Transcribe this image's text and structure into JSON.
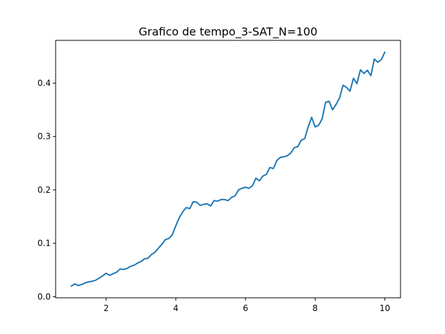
{
  "chart_data": {
    "type": "line",
    "title": "Grafico de tempo_3-SAT_N=100",
    "xlabel": "",
    "ylabel": "",
    "xlim": [
      0.55,
      10.45
    ],
    "ylim": [
      -0.002,
      0.48
    ],
    "xticks": [
      2,
      4,
      6,
      8,
      10
    ],
    "yticks": [
      0.0,
      0.1,
      0.2,
      0.3,
      0.4
    ],
    "xtick_labels": [
      "2",
      "4",
      "6",
      "8",
      "10"
    ],
    "ytick_labels": [
      "0.0",
      "0.1",
      "0.2",
      "0.3",
      "0.4"
    ],
    "grid": false,
    "series": [
      {
        "color": "#1f77b4",
        "x": [
          1.0,
          1.1,
          1.2,
          1.3,
          1.4,
          1.5,
          1.6,
          1.7,
          1.8,
          1.9,
          2.0,
          2.1,
          2.2,
          2.3,
          2.4,
          2.5,
          2.6,
          2.7,
          2.8,
          2.9,
          3.0,
          3.1,
          3.2,
          3.3,
          3.4,
          3.5,
          3.6,
          3.7,
          3.8,
          3.9,
          4.0,
          4.1,
          4.2,
          4.3,
          4.4,
          4.5,
          4.6,
          4.7,
          4.8,
          4.9,
          5.0,
          5.1,
          5.2,
          5.3,
          5.4,
          5.5,
          5.6,
          5.7,
          5.8,
          5.9,
          6.0,
          6.1,
          6.2,
          6.3,
          6.4,
          6.5,
          6.6,
          6.7,
          6.8,
          6.9,
          7.0,
          7.1,
          7.2,
          7.3,
          7.4,
          7.5,
          7.6,
          7.7,
          7.8,
          7.9,
          8.0,
          8.1,
          8.2,
          8.3,
          8.4,
          8.5,
          8.6,
          8.7,
          8.8,
          8.9,
          9.0,
          9.1,
          9.2,
          9.3,
          9.4,
          9.5,
          9.6,
          9.7,
          9.8,
          9.9,
          10.0
        ],
        "y": [
          0.02,
          0.024,
          0.021,
          0.023,
          0.026,
          0.028,
          0.029,
          0.031,
          0.035,
          0.039,
          0.044,
          0.04,
          0.043,
          0.046,
          0.052,
          0.051,
          0.053,
          0.057,
          0.059,
          0.063,
          0.066,
          0.071,
          0.072,
          0.079,
          0.083,
          0.091,
          0.098,
          0.107,
          0.109,
          0.116,
          0.133,
          0.148,
          0.159,
          0.167,
          0.165,
          0.178,
          0.177,
          0.171,
          0.173,
          0.174,
          0.17,
          0.18,
          0.179,
          0.182,
          0.182,
          0.18,
          0.186,
          0.189,
          0.2,
          0.203,
          0.205,
          0.203,
          0.208,
          0.222,
          0.217,
          0.226,
          0.229,
          0.242,
          0.24,
          0.255,
          0.261,
          0.262,
          0.264,
          0.269,
          0.279,
          0.281,
          0.293,
          0.296,
          0.318,
          0.336,
          0.318,
          0.321,
          0.333,
          0.364,
          0.366,
          0.35,
          0.36,
          0.372,
          0.396,
          0.392,
          0.385,
          0.409,
          0.399,
          0.425,
          0.418,
          0.424,
          0.414,
          0.445,
          0.439,
          0.444,
          0.458
        ]
      }
    ]
  }
}
